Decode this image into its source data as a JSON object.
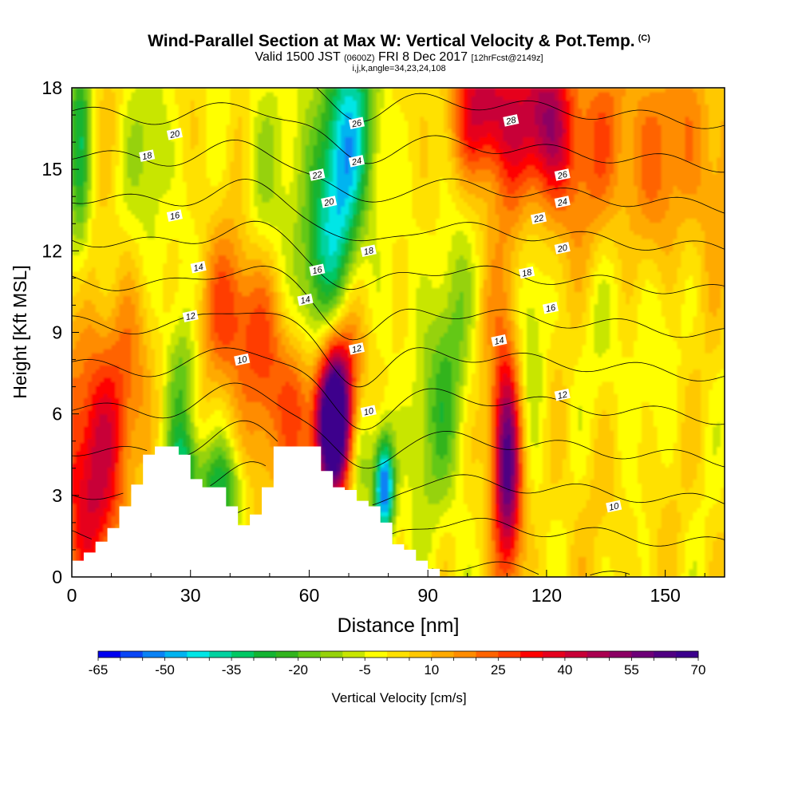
{
  "title": {
    "main": "Wind-Parallel Section at Max W: Vertical Velocity & Pot.Temp.",
    "copyright": "(C)",
    "valid_prefix": "Valid 1500 JST",
    "valid_zulu": "(0600Z)",
    "valid_date": "FRI 8 Dec 2017",
    "forecast": "[12hrFcst@2149z]",
    "params": "i,j,k,angle=34,23,24,108"
  },
  "chart_data": {
    "type": "heatmap",
    "xlabel": "Distance [nm]",
    "ylabel": "Height [Kft MSL]",
    "xlim": [
      0,
      165
    ],
    "ylim": [
      0,
      18
    ],
    "xticks": [
      0,
      30,
      60,
      90,
      120,
      150
    ],
    "yticks": [
      0,
      3,
      6,
      9,
      12,
      15,
      18
    ],
    "grid": false,
    "colorbar": {
      "label": "Vertical Velocity [cm/s]",
      "min": -65,
      "max": 70,
      "step": 5,
      "tick_labels": [
        "-65",
        "-50",
        "-35",
        "-20",
        "-5",
        "10",
        "25",
        "40",
        "55",
        "70"
      ],
      "colors": [
        "#0000f0",
        "#0a46f5",
        "#0a82f5",
        "#00b4f0",
        "#00e6e6",
        "#00d2a0",
        "#00c864",
        "#14b432",
        "#32b41e",
        "#64c814",
        "#96d20a",
        "#c8e600",
        "#ffff00",
        "#ffe100",
        "#ffc800",
        "#ffaa00",
        "#ff8c00",
        "#ff6400",
        "#ff3c00",
        "#ff0000",
        "#e6001e",
        "#c80037",
        "#aa0050",
        "#8c0064",
        "#6e0078",
        "#500082",
        "#3c008c"
      ]
    },
    "terrain_profile": {
      "x": [
        0,
        3,
        6,
        9,
        12,
        15,
        18,
        21,
        24,
        27,
        30,
        33,
        36,
        39,
        42,
        45,
        48,
        51,
        54,
        57,
        60,
        63,
        66,
        69,
        72,
        75,
        78,
        81,
        84,
        87,
        90,
        93,
        96,
        99
      ],
      "height": [
        0.6,
        0.9,
        1.3,
        1.8,
        2.6,
        3.4,
        4.5,
        4.8,
        4.8,
        4.5,
        3.6,
        3.3,
        3.3,
        2.6,
        1.9,
        2.3,
        3.3,
        4.8,
        4.8,
        4.8,
        4.8,
        3.9,
        3.3,
        3.2,
        2.8,
        2.6,
        2.0,
        1.2,
        1.0,
        0.6,
        0.3,
        0.0,
        0.0,
        0.0
      ]
    },
    "velocity_features": [
      {
        "x": 66,
        "y": 5.6,
        "sx": 3.2,
        "sy": 1.9,
        "value": 70
      },
      {
        "x": 68,
        "y": 6.8,
        "sx": 5,
        "sy": 2.4,
        "value": 35
      },
      {
        "x": 110,
        "y": 4.0,
        "sx": 2.4,
        "sy": 2.6,
        "value": 45
      },
      {
        "x": 110,
        "y": 5.5,
        "sx": 3.5,
        "sy": 4.5,
        "value": 18
      },
      {
        "x": 42,
        "y": 9.5,
        "sx": 6,
        "sy": 2.2,
        "value": 28
      },
      {
        "x": 50,
        "y": 6.5,
        "sx": 4,
        "sy": 3,
        "value": 15
      },
      {
        "x": 57,
        "y": 6.2,
        "sx": 3,
        "sy": 2.2,
        "value": 30
      },
      {
        "x": 4,
        "y": 3.2,
        "sx": 6,
        "sy": 3,
        "value": 33
      },
      {
        "x": 10,
        "y": 7,
        "sx": 8,
        "sy": 3,
        "value": 18
      },
      {
        "x": 105,
        "y": 17.3,
        "sx": 6,
        "sy": 1.8,
        "value": 38
      },
      {
        "x": 120,
        "y": 16.8,
        "sx": 5,
        "sy": 2,
        "value": 35
      },
      {
        "x": 140,
        "y": 15.5,
        "sx": 25,
        "sy": 3,
        "value": 20
      },
      {
        "x": 130,
        "y": 4,
        "sx": 18,
        "sy": 3,
        "value": 4
      },
      {
        "x": 79,
        "y": 3.3,
        "sx": 1.8,
        "sy": 1.4,
        "value": -62
      },
      {
        "x": 73,
        "y": 4.8,
        "sx": 2.5,
        "sy": 2,
        "value": -22
      },
      {
        "x": 60,
        "y": 10.5,
        "sx": 5,
        "sy": 4,
        "value": -22
      },
      {
        "x": 67,
        "y": 14,
        "sx": 4,
        "sy": 4,
        "value": -30
      },
      {
        "x": 72,
        "y": 16.5,
        "sx": 5,
        "sy": 3,
        "value": -28
      },
      {
        "x": 2,
        "y": 15.5,
        "sx": 2.2,
        "sy": 3.5,
        "value": -28
      },
      {
        "x": 28,
        "y": 7,
        "sx": 3,
        "sy": 2,
        "value": -22
      },
      {
        "x": 28,
        "y": 4,
        "sx": 3,
        "sy": 1.2,
        "value": -30
      },
      {
        "x": 38,
        "y": 3.2,
        "sx": 4,
        "sy": 1.2,
        "value": -28
      },
      {
        "x": 90,
        "y": 6,
        "sx": 5,
        "sy": 3,
        "value": -14
      },
      {
        "x": 96,
        "y": 9,
        "sx": 4,
        "sy": 5,
        "value": -14
      },
      {
        "x": 116,
        "y": 8,
        "sx": 3,
        "sy": 5,
        "value": -14
      },
      {
        "x": 20,
        "y": 15,
        "sx": 4,
        "sy": 3,
        "value": -14
      },
      {
        "x": 48,
        "y": 15,
        "sx": 4,
        "sy": 3,
        "value": -10
      },
      {
        "x": 140,
        "y": 9,
        "sx": 10,
        "sy": 4,
        "value": -8
      }
    ],
    "contours": {
      "variable": "potential temperature",
      "levels": [
        10,
        12,
        14,
        16,
        18,
        20,
        22,
        24,
        26,
        28
      ],
      "labels": [
        {
          "text": "20",
          "x": 26,
          "y": 16.3
        },
        {
          "text": "18",
          "x": 19,
          "y": 15.5
        },
        {
          "text": "16",
          "x": 26,
          "y": 13.3
        },
        {
          "text": "14",
          "x": 32,
          "y": 11.4
        },
        {
          "text": "12",
          "x": 30,
          "y": 9.6
        },
        {
          "text": "10",
          "x": 43,
          "y": 8.0
        },
        {
          "text": "26",
          "x": 72,
          "y": 16.7
        },
        {
          "text": "24",
          "x": 72,
          "y": 15.3
        },
        {
          "text": "22",
          "x": 62,
          "y": 14.8
        },
        {
          "text": "20",
          "x": 65,
          "y": 13.8
        },
        {
          "text": "18",
          "x": 75,
          "y": 12.0
        },
        {
          "text": "16",
          "x": 62,
          "y": 11.3
        },
        {
          "text": "14",
          "x": 59,
          "y": 10.2
        },
        {
          "text": "12",
          "x": 72,
          "y": 8.4
        },
        {
          "text": "10",
          "x": 75,
          "y": 6.1
        },
        {
          "text": "28",
          "x": 111,
          "y": 16.8
        },
        {
          "text": "26",
          "x": 124,
          "y": 14.8
        },
        {
          "text": "24",
          "x": 124,
          "y": 13.8
        },
        {
          "text": "22",
          "x": 118,
          "y": 13.2
        },
        {
          "text": "20",
          "x": 124,
          "y": 12.1
        },
        {
          "text": "18",
          "x": 115,
          "y": 11.2
        },
        {
          "text": "16",
          "x": 121,
          "y": 9.9
        },
        {
          "text": "14",
          "x": 108,
          "y": 8.7
        },
        {
          "text": "12",
          "x": 124,
          "y": 6.7
        },
        {
          "text": "10",
          "x": 137,
          "y": 2.6
        }
      ]
    }
  }
}
